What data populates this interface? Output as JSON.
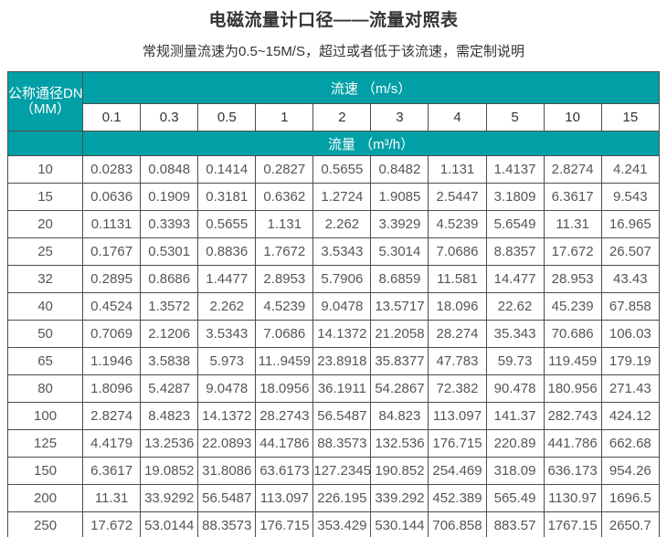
{
  "page": {
    "title": "电磁流量计口径——流量对照表",
    "subtitle": "常规测量流速为0.5~15M/S，超过或者低于该流速，需定制说明"
  },
  "table": {
    "corner_header_line1": "公称通径DN",
    "corner_header_line2": "（MM）",
    "velocity_group_header": "流速 （m/s）",
    "flow_group_header": "流量 （m³/h）",
    "velocity_columns": [
      "0.1",
      "0.3",
      "0.5",
      "1",
      "2",
      "3",
      "4",
      "5",
      "10",
      "15"
    ],
    "rows": [
      {
        "dn": "10",
        "values": [
          "0.0283",
          "0.0848",
          "0.1414",
          "0.2827",
          "0.5655",
          "0.8482",
          "1.131",
          "1.4137",
          "2.8274",
          "4.241"
        ]
      },
      {
        "dn": "15",
        "values": [
          "0.0636",
          "0.1909",
          "0.3181",
          "0.6362",
          "1.2724",
          "1.9085",
          "2.5447",
          "3.1809",
          "6.3617",
          "9.543"
        ]
      },
      {
        "dn": "20",
        "values": [
          "0.1131",
          "0.3393",
          "0.5655",
          "1.131",
          "2.262",
          "3.3929",
          "4.5239",
          "5.6549",
          "11.31",
          "16.965"
        ]
      },
      {
        "dn": "25",
        "values": [
          "0.1767",
          "0.5301",
          "0.8836",
          "1.7672",
          "3.5343",
          "5.3014",
          "7.0686",
          "8.8357",
          "17.672",
          "26.507"
        ]
      },
      {
        "dn": "32",
        "values": [
          "0.2895",
          "0.8686",
          "1.4477",
          "2.8953",
          "5.7906",
          "8.6859",
          "11.581",
          "14.477",
          "28.953",
          "43.43"
        ]
      },
      {
        "dn": "40",
        "values": [
          "0.4524",
          "1.3572",
          "2.262",
          "4.5239",
          "9.0478",
          "13.5717",
          "18.096",
          "22.62",
          "45.239",
          "67.858"
        ]
      },
      {
        "dn": "50",
        "values": [
          "0.7069",
          "2.1206",
          "3.5343",
          "7.0686",
          "14.1372",
          "21.2058",
          "28.274",
          "35.343",
          "70.686",
          "106.03"
        ]
      },
      {
        "dn": "65",
        "values": [
          "1.1946",
          "3.5838",
          "5.973",
          "11..9459",
          "23.8918",
          "35.8377",
          "47.783",
          "59.73",
          "119.459",
          "179.19"
        ]
      },
      {
        "dn": "80",
        "values": [
          "1.8096",
          "5.4287",
          "9.0478",
          "18.0956",
          "36.1911",
          "54.2867",
          "72.382",
          "90.478",
          "180.956",
          "271.43"
        ]
      },
      {
        "dn": "100",
        "values": [
          "2.8274",
          "8.4823",
          "14.1372",
          "28.2743",
          "56.5487",
          "84.823",
          "113.097",
          "141.37",
          "282.743",
          "424.12"
        ]
      },
      {
        "dn": "125",
        "values": [
          "4.4179",
          "13.2536",
          "22.0893",
          "44.1786",
          "88.3573",
          "132.536",
          "176.715",
          "220.89",
          "441.786",
          "662.68"
        ]
      },
      {
        "dn": "150",
        "values": [
          "6.3617",
          "19.0852",
          "31.8086",
          "63.6173",
          "127.2345",
          "190.852",
          "254.469",
          "318.09",
          "636.173",
          "954.26"
        ]
      },
      {
        "dn": "200",
        "values": [
          "11.31",
          "33.9292",
          "56.5487",
          "113.097",
          "226.195",
          "339.292",
          "452.389",
          "565.49",
          "1130.97",
          "1696.5"
        ]
      },
      {
        "dn": "250",
        "values": [
          "17.672",
          "53.0144",
          "88.3573",
          "176.715",
          "353.429",
          "530.144",
          "706.858",
          "883.57",
          "1767.15",
          "2650.7"
        ]
      }
    ]
  },
  "colors": {
    "accent_teal": "#00a0a6",
    "border": "#4d4d4d",
    "header_text": "#ffffff",
    "body_text": "#555555",
    "title_text": "#333333"
  }
}
